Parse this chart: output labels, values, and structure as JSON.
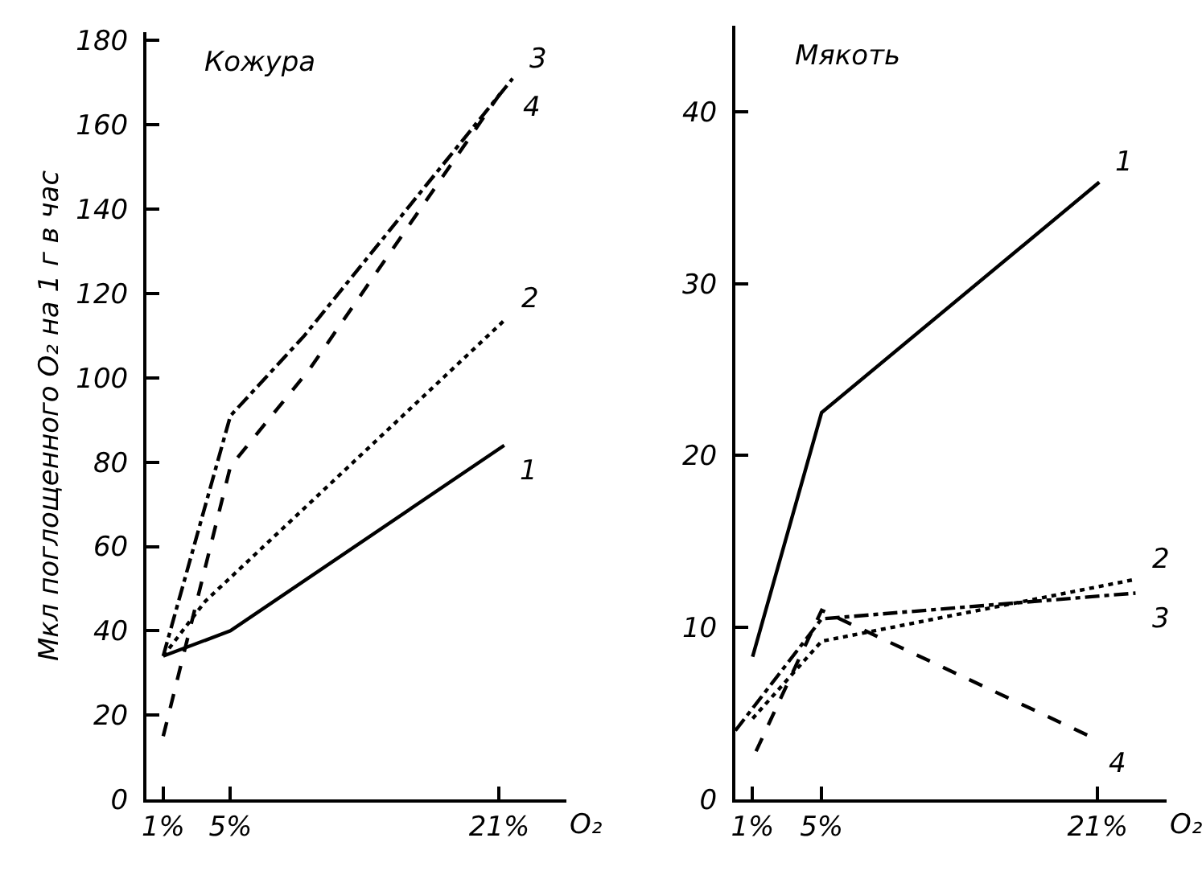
{
  "chart_data": [
    {
      "type": "line",
      "title": "Кожура",
      "xlabel": "O₂",
      "ylabel": "Мкл поглощенного O₂ на 1 г в час",
      "xlim": [
        0,
        25
      ],
      "xticks": [
        {
          "value": 1,
          "label": "1%"
        },
        {
          "value": 5,
          "label": "5%"
        },
        {
          "value": 21,
          "label": "21%"
        }
      ],
      "ylim": [
        0,
        182
      ],
      "yticks": [
        0,
        20,
        40,
        60,
        80,
        100,
        120,
        140,
        160,
        180
      ],
      "grid": false,
      "marker": "none",
      "series": [
        {
          "name": "1",
          "color": "#000000",
          "line_style": "solid",
          "x": [
            1,
            5,
            21.3
          ],
          "values": [
            34,
            40,
            84
          ]
        },
        {
          "name": "2",
          "color": "#000000",
          "line_style": "dotted",
          "x": [
            1,
            3.5,
            21.4
          ],
          "values": [
            34,
            47,
            114
          ]
        },
        {
          "name": "3",
          "color": "#000000",
          "line_style": "dashdot",
          "x": [
            1,
            5,
            9.4,
            21.8
          ],
          "values": [
            34,
            91,
            110,
            171
          ]
        },
        {
          "name": "4",
          "color": "#000000",
          "line_style": "dashed",
          "x": [
            1,
            5,
            9.7,
            21.5
          ],
          "values": [
            15,
            79,
            102,
            170
          ]
        }
      ]
    },
    {
      "type": "line",
      "title": "Мякоть",
      "xlabel": "O₂",
      "xlim": [
        0,
        25
      ],
      "xticks": [
        {
          "value": 1,
          "label": "1%"
        },
        {
          "value": 5,
          "label": "5%"
        },
        {
          "value": 21,
          "label": "21%"
        }
      ],
      "ylim": [
        0,
        45
      ],
      "yticks": [
        0,
        10,
        20,
        30,
        40
      ],
      "grid": false,
      "marker": "none",
      "series": [
        {
          "name": "1",
          "color": "#000000",
          "line_style": "solid",
          "x": [
            1,
            5,
            21.1
          ],
          "values": [
            8.3,
            22.5,
            35.9
          ]
        },
        {
          "name": "2",
          "color": "#000000",
          "line_style": "dotted",
          "x": [
            1,
            5,
            23.2
          ],
          "values": [
            4.7,
            9.2,
            12.8
          ]
        },
        {
          "name": "3",
          "color": "#000000",
          "line_style": "dashdot",
          "x": [
            0,
            5,
            23.2
          ],
          "values": [
            4,
            10.5,
            12
          ]
        },
        {
          "name": "4",
          "color": "#000000",
          "line_style": "dashed",
          "x": [
            1.2,
            5,
            20.7
          ],
          "values": [
            2.8,
            11,
            3.6
          ]
        }
      ]
    }
  ]
}
